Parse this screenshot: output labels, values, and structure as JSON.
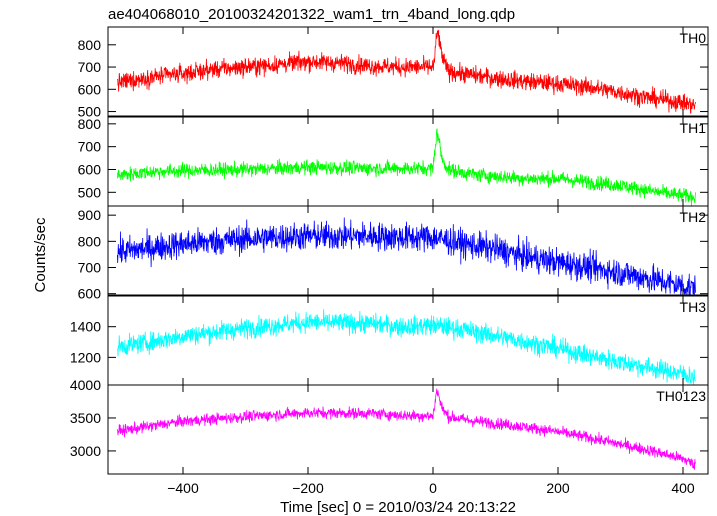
{
  "chart_data": {
    "type": "line",
    "title": "ae404068010_20100324201322_wam1_trn_4band_long.qdp",
    "xlabel": "Time [sec] 0 = 2010/03/24 20:13:22",
    "ylabel": "Counts/sec",
    "xlim": [
      -520,
      440
    ],
    "x_ticks": [
      -400,
      -200,
      0,
      200,
      400
    ],
    "x_tick_labels": [
      "−400",
      "−200",
      "0",
      "200",
      "400"
    ],
    "x_range": [
      -505,
      420
    ],
    "grid": false,
    "panels": [
      {
        "name": "TH0",
        "color": "#ff0000",
        "ylim": [
          480,
          880
        ],
        "y_ticks": [
          500,
          600,
          700,
          800
        ],
        "noise": 28,
        "curve": [
          [
            -505,
            630
          ],
          [
            -450,
            655
          ],
          [
            -400,
            670
          ],
          [
            -350,
            690
          ],
          [
            -300,
            700
          ],
          [
            -250,
            710
          ],
          [
            -200,
            725
          ],
          [
            -150,
            718
          ],
          [
            -100,
            705
          ],
          [
            -50,
            700
          ],
          [
            -10,
            700
          ],
          [
            0,
            700
          ],
          [
            3,
            740
          ],
          [
            5,
            820
          ],
          [
            8,
            860
          ],
          [
            12,
            780
          ],
          [
            18,
            720
          ],
          [
            25,
            680
          ],
          [
            60,
            665
          ],
          [
            100,
            650
          ],
          [
            150,
            635
          ],
          [
            200,
            625
          ],
          [
            250,
            610
          ],
          [
            300,
            585
          ],
          [
            350,
            560
          ],
          [
            400,
            540
          ],
          [
            420,
            525
          ]
        ]
      },
      {
        "name": "TH1",
        "color": "#00ff00",
        "ylim": [
          440,
          830
        ],
        "y_ticks": [
          500,
          600,
          700,
          800
        ],
        "noise": 22,
        "curve": [
          [
            -505,
            575
          ],
          [
            -450,
            590
          ],
          [
            -400,
            595
          ],
          [
            -300,
            600
          ],
          [
            -200,
            610
          ],
          [
            -100,
            605
          ],
          [
            -10,
            605
          ],
          [
            0,
            605
          ],
          [
            3,
            680
          ],
          [
            6,
            770
          ],
          [
            10,
            720
          ],
          [
            15,
            640
          ],
          [
            25,
            600
          ],
          [
            60,
            580
          ],
          [
            100,
            570
          ],
          [
            150,
            560
          ],
          [
            200,
            560
          ],
          [
            250,
            545
          ],
          [
            300,
            530
          ],
          [
            350,
            505
          ],
          [
            400,
            485
          ],
          [
            420,
            480
          ]
        ]
      },
      {
        "name": "TH2",
        "color": "#0000ff",
        "ylim": [
          595,
          935
        ],
        "y_ticks": [
          600,
          700,
          800,
          900
        ],
        "noise": 38,
        "curve": [
          [
            -505,
            760
          ],
          [
            -450,
            775
          ],
          [
            -400,
            790
          ],
          [
            -300,
            810
          ],
          [
            -200,
            820
          ],
          [
            -100,
            820
          ],
          [
            -50,
            815
          ],
          [
            0,
            815
          ],
          [
            50,
            790
          ],
          [
            100,
            770
          ],
          [
            150,
            740
          ],
          [
            200,
            720
          ],
          [
            250,
            700
          ],
          [
            300,
            680
          ],
          [
            350,
            655
          ],
          [
            400,
            630
          ],
          [
            420,
            620
          ]
        ]
      },
      {
        "name": "TH3",
        "color": "#00ffff",
        "ylim": [
          1020,
          1600
        ],
        "y_ticks": [
          1200,
          1400
        ],
        "noise": 45,
        "curve": [
          [
            -505,
            1270
          ],
          [
            -450,
            1300
          ],
          [
            -400,
            1340
          ],
          [
            -300,
            1390
          ],
          [
            -200,
            1430
          ],
          [
            -100,
            1420
          ],
          [
            -50,
            1400
          ],
          [
            0,
            1410
          ],
          [
            50,
            1380
          ],
          [
            100,
            1340
          ],
          [
            150,
            1300
          ],
          [
            200,
            1260
          ],
          [
            250,
            1210
          ],
          [
            300,
            1170
          ],
          [
            350,
            1130
          ],
          [
            400,
            1090
          ],
          [
            420,
            1070
          ]
        ]
      },
      {
        "name": "TH0123",
        "color": "#ff00ff",
        "ylim": [
          2650,
          4000
        ],
        "y_ticks": [
          3000,
          3500,
          4000
        ],
        "noise": 60,
        "curve": [
          [
            -505,
            3300
          ],
          [
            -450,
            3380
          ],
          [
            -400,
            3450
          ],
          [
            -300,
            3520
          ],
          [
            -200,
            3580
          ],
          [
            -100,
            3570
          ],
          [
            -50,
            3540
          ],
          [
            -10,
            3530
          ],
          [
            0,
            3530
          ],
          [
            3,
            3700
          ],
          [
            6,
            3950
          ],
          [
            10,
            3800
          ],
          [
            15,
            3640
          ],
          [
            25,
            3520
          ],
          [
            60,
            3460
          ],
          [
            100,
            3420
          ],
          [
            150,
            3360
          ],
          [
            200,
            3290
          ],
          [
            250,
            3200
          ],
          [
            300,
            3100
          ],
          [
            350,
            3000
          ],
          [
            400,
            2880
          ],
          [
            420,
            2790
          ]
        ]
      }
    ]
  }
}
